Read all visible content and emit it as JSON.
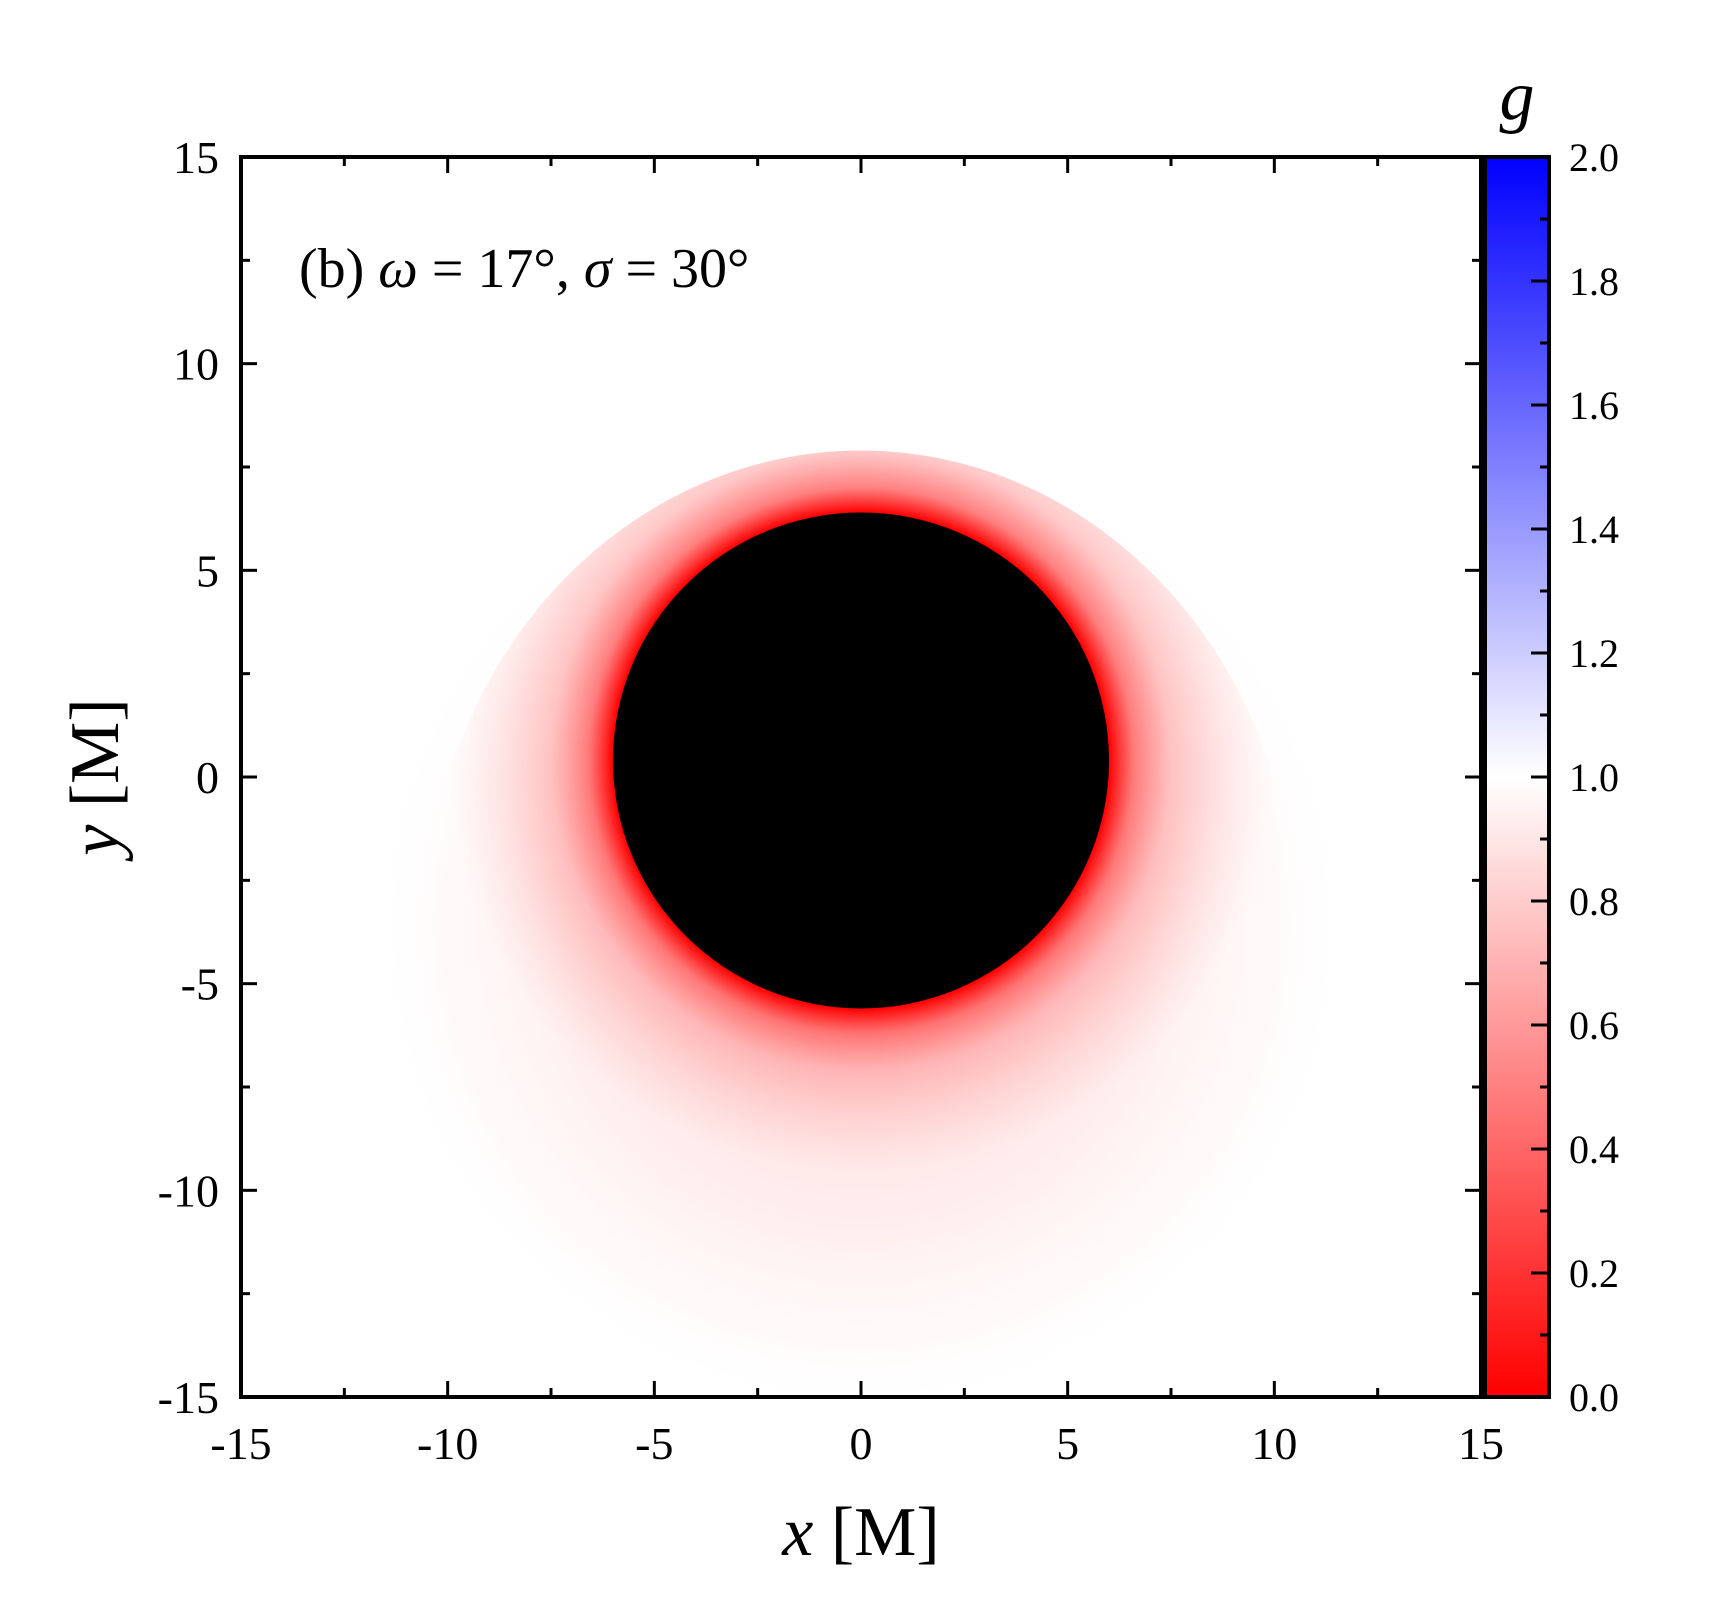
{
  "chart_data": {
    "type": "heatmap",
    "annotation": {
      "prefix": "(b) ",
      "omega_symbol": "ω",
      "omega_text": " = 17°, ",
      "sigma_symbol": "σ",
      "sigma_text": " = 30°"
    },
    "xlabel": {
      "var": "x",
      "unit": " [M]"
    },
    "ylabel": {
      "var": "y",
      "unit": " [M]"
    },
    "xlim": [
      -15,
      15
    ],
    "ylim": [
      -15,
      15
    ],
    "xticks": [
      -15,
      -10,
      -5,
      0,
      5,
      10,
      15
    ],
    "yticks": [
      -15,
      -10,
      -5,
      0,
      5,
      10,
      15
    ],
    "xtick_labels": [
      "-15",
      "-10",
      "-5",
      "0",
      "5",
      "10",
      "15"
    ],
    "ytick_labels": [
      "-15",
      "-10",
      "-5",
      "0",
      "5",
      "10",
      "15"
    ],
    "colorbar": {
      "label": "g",
      "range": [
        0.0,
        2.0
      ],
      "ticks": [
        0.0,
        0.2,
        0.4,
        0.6,
        0.8,
        1.0,
        1.2,
        1.4,
        1.6,
        1.8,
        2.0
      ],
      "tick_labels": [
        "0.0",
        "0.2",
        "0.4",
        "0.6",
        "0.8",
        "1.0",
        "1.2",
        "1.4",
        "1.6",
        "1.8",
        "2.0"
      ],
      "colors": {
        "low": "#ff0000",
        "mid": "#ffffff",
        "high": "#0000ff"
      }
    },
    "shadow": {
      "center": [
        0.0,
        0.4
      ],
      "radius": 6.0,
      "color": "#000000"
    },
    "emission_region": {
      "center": [
        0.0,
        -3.6
      ],
      "rx": 10.5,
      "ry": 11.5
    },
    "redshift_field": {
      "min_g": 0.0,
      "max_g": 0.99
    }
  }
}
